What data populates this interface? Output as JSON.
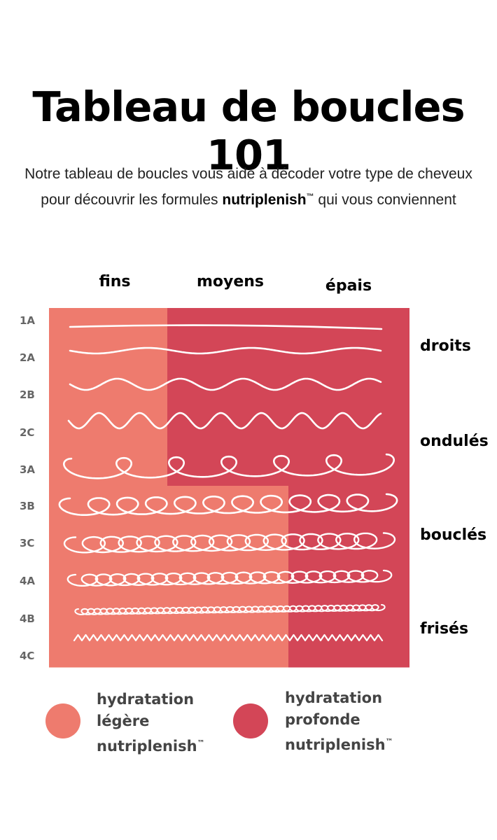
{
  "title": "Tableau de boucles 101",
  "subtitle": {
    "line1": "Notre tableau de boucles vous aide à décoder votre type de cheveux",
    "line2_pre": "pour découvrir les formules ",
    "line2_brand": "nutriplenish",
    "line2_tm": "™",
    "line2_post": " qui vous conviennent"
  },
  "columns": [
    "fins",
    "moyens",
    "épais"
  ],
  "rows": [
    "1A",
    "2A",
    "2B",
    "2C",
    "3A",
    "3B",
    "3C",
    "4A",
    "4B",
    "4C"
  ],
  "categories": [
    "droits",
    "ondulés",
    "bouclés",
    "frisés"
  ],
  "colors": {
    "light": "#ee7b6e",
    "deep": "#d34657",
    "line": "#ffffff"
  },
  "legend": [
    {
      "l1": "hydratation",
      "l2": "légère",
      "l3": "nutriplenish",
      "tm": "™"
    },
    {
      "l1": "hydratation",
      "l2": "profonde",
      "l3": "nutriplenish",
      "tm": "™"
    }
  ],
  "chart_data": {
    "type": "table",
    "columns": [
      "fins",
      "moyens",
      "épais"
    ],
    "rows": [
      {
        "code": "1A",
        "group": "droits",
        "fins": "hydratation légère",
        "moyens": "hydratation profonde",
        "épais": "hydratation profonde"
      },
      {
        "code": "2A",
        "group": "droits",
        "fins": "hydratation légère",
        "moyens": "hydratation profonde",
        "épais": "hydratation profonde"
      },
      {
        "code": "2B",
        "group": "ondulés",
        "fins": "hydratation légère",
        "moyens": "hydratation profonde",
        "épais": "hydratation profonde"
      },
      {
        "code": "2C",
        "group": "ondulés",
        "fins": "hydratation légère",
        "moyens": "hydratation profonde",
        "épais": "hydratation profonde"
      },
      {
        "code": "3A",
        "group": "ondulés",
        "fins": "hydratation légère",
        "moyens": "hydratation profonde",
        "épais": "hydratation profonde"
      },
      {
        "code": "3B",
        "group": "bouclés",
        "fins": "hydratation légère",
        "moyens": "hydratation légère",
        "épais": "hydratation profonde"
      },
      {
        "code": "3C",
        "group": "bouclés",
        "fins": "hydratation légère",
        "moyens": "hydratation légère",
        "épais": "hydratation profonde"
      },
      {
        "code": "4A",
        "group": "bouclés",
        "fins": "hydratation légère",
        "moyens": "hydratation légère",
        "épais": "hydratation profonde"
      },
      {
        "code": "4B",
        "group": "frisés",
        "fins": "hydratation légère",
        "moyens": "hydratation légère",
        "épais": "hydratation profonde"
      },
      {
        "code": "4C",
        "group": "frisés",
        "fins": "hydratation légère",
        "moyens": "hydratation légère",
        "épais": "hydratation profonde"
      }
    ]
  }
}
